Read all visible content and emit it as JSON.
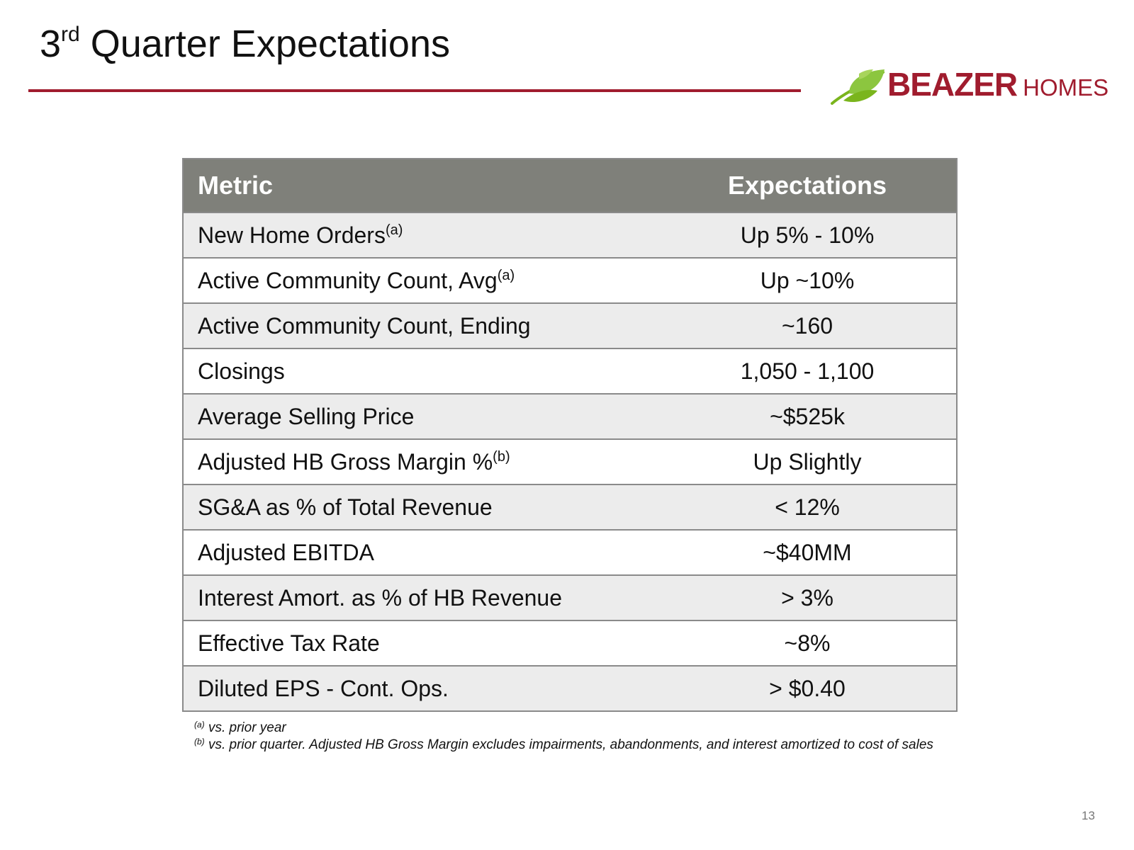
{
  "slide": {
    "title_prefix": "3",
    "title_sup": "rd",
    "title_rest": " Quarter Expectations",
    "page_number": "13"
  },
  "logo": {
    "word1": "BEAZER",
    "word2": "HOMES",
    "icon": "leaf-icon",
    "colors": {
      "brand_red": "#a01c2e",
      "leaf_green": "#7ab51d"
    }
  },
  "table": {
    "headers": {
      "metric": "Metric",
      "expectations": "Expectations"
    },
    "rows": [
      {
        "metric": "New Home Orders",
        "note": "(a)",
        "value": "Up 5% - 10%"
      },
      {
        "metric": "Active Community Count, Avg",
        "note": "(a)",
        "value": "Up ~10%"
      },
      {
        "metric": "Active Community Count, Ending",
        "note": "",
        "value": "~160"
      },
      {
        "metric": "Closings",
        "note": "",
        "value": "1,050 - 1,100"
      },
      {
        "metric": "Average Selling Price",
        "note": "",
        "value": "~$525k"
      },
      {
        "metric": "Adjusted HB Gross Margin %",
        "note": "(b)",
        "value": "Up Slightly"
      },
      {
        "metric": "SG&A as % of Total Revenue",
        "note": "",
        "value": "< 12%"
      },
      {
        "metric": "Adjusted EBITDA",
        "note": "",
        "value": "~$40MM"
      },
      {
        "metric": "Interest Amort. as % of HB Revenue",
        "note": "",
        "value": "> 3%"
      },
      {
        "metric": "Effective Tax Rate",
        "note": "",
        "value": "~8%"
      },
      {
        "metric": "Diluted EPS - Cont. Ops.",
        "note": "",
        "value": "> $0.40"
      }
    ],
    "colors": {
      "header_bg": "#7f807a",
      "row_alt_bg": "#ececec"
    }
  },
  "footnotes": [
    {
      "marker": "(a)",
      "text": " vs. prior year"
    },
    {
      "marker": "(b)",
      "text": " vs. prior quarter. Adjusted HB Gross Margin excludes impairments, abandonments, and interest amortized to cost of sales"
    }
  ]
}
